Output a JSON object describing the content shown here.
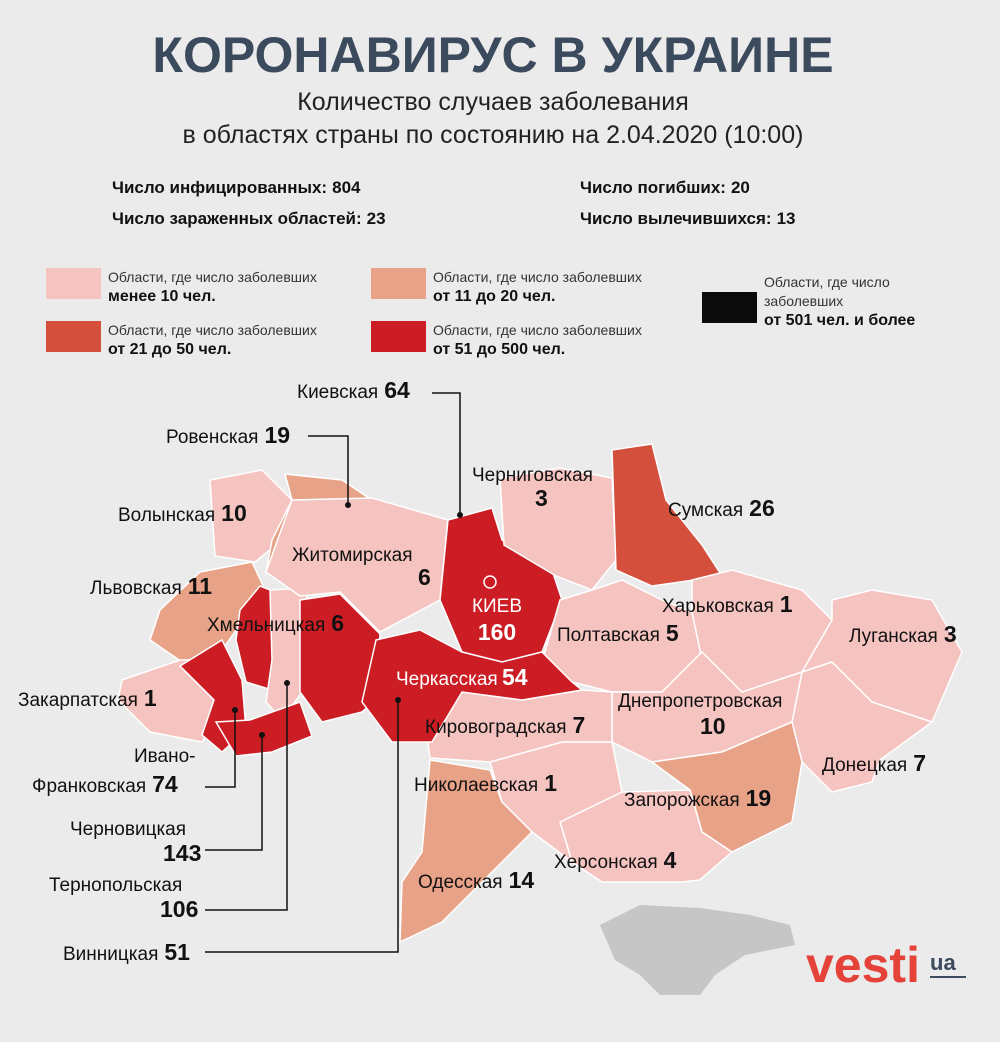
{
  "header": {
    "title": "КОРОНАВИРУС В УКРАИНЕ",
    "subtitle": [
      "Количество случаев заболевания",
      "в областях страны по состоянию на 2.04.2020 (10:00)"
    ]
  },
  "stats": [
    {
      "label": "Число инфицированных:",
      "value": 804
    },
    {
      "label": "Число зараженных областей:",
      "value": 23
    },
    {
      "label": "Число погибших:",
      "value": 20
    },
    {
      "label": "Число вылечившихся:",
      "value": 13
    }
  ],
  "legend": [
    {
      "text": [
        "Области, где число заболевших"
      ],
      "range": "менее 10 чел.",
      "color": "#f5c4c0"
    },
    {
      "text": [
        "Области, где число заболевших"
      ],
      "range": "от 11 до 20 чел.",
      "color": "#e8a287"
    },
    {
      "text": [
        "Области, где число",
        "заболевших"
      ],
      "range": "от 501 чел. и более",
      "color": "#0b0b0b"
    },
    {
      "text": [
        "Области, где число заболевших"
      ],
      "range": "от 21 до 50 чел.",
      "color": "#d4503c"
    },
    {
      "text": [
        "Области, где число заболевших"
      ],
      "range": "от 51 до 500 чел.",
      "color": "#cc1d24"
    }
  ],
  "regions": [
    {
      "name": "Волынская",
      "value": 10,
      "color": "#f5c4c0"
    },
    {
      "name": "Ровенская",
      "value": 19,
      "color": "#e8a287"
    },
    {
      "name": "Львовская",
      "value": 11,
      "color": "#e8a287"
    },
    {
      "name": "Закарпатская",
      "value": 1,
      "color": "#f5c4c0"
    },
    {
      "name": [
        "Ивано-",
        "Франковская"
      ],
      "value": 74,
      "color": "#cc1d24"
    },
    {
      "name": "Тернопольская",
      "value": 106,
      "color": "#cc1d24"
    },
    {
      "name": "Хмельницкая",
      "value": 6,
      "color": "#f5c4c0"
    },
    {
      "name": "Черновицкая",
      "value": 143,
      "color": "#cc1d24"
    },
    {
      "name": "Житомирская",
      "value": 6,
      "color": "#f5c4c0"
    },
    {
      "name": "Винницкая",
      "value": 51,
      "color": "#cc1d24"
    },
    {
      "name": "Киевская",
      "value": 64,
      "color": "#cc1d24"
    },
    {
      "name": "Черниговская",
      "value": 3,
      "color": "#f5c4c0"
    },
    {
      "name": "Сумская",
      "value": 26,
      "color": "#d4503c"
    },
    {
      "name": "Полтавская",
      "value": 5,
      "color": "#f5c4c0"
    },
    {
      "name": "Харьковская",
      "value": 1,
      "color": "#f5c4c0"
    },
    {
      "name": "Луганская",
      "value": 3,
      "color": "#f5c4c0"
    },
    {
      "name": "Донецкая",
      "value": 7,
      "color": "#f5c4c0"
    },
    {
      "name": "Днепропетровская",
      "value": 10,
      "color": "#f5c4c0"
    },
    {
      "name": "Запорожская",
      "value": 19,
      "color": "#e8a287"
    },
    {
      "name": "Херсонская",
      "value": 4,
      "color": "#f5c4c0"
    },
    {
      "name": "Николаевская",
      "value": 1,
      "color": "#f5c4c0"
    },
    {
      "name": "Одесская",
      "value": 14,
      "color": "#e8a287"
    },
    {
      "name": "Кировоградская",
      "value": 7,
      "color": "#f5c4c0"
    },
    {
      "name": "Черкасская",
      "value": 54,
      "color": "#cc1d24"
    },
    {
      "name": "КИЕВ",
      "value": 160,
      "color": "#cc1d24"
    }
  ],
  "logo": {
    "brand": "vesti",
    "domain": "ua"
  }
}
